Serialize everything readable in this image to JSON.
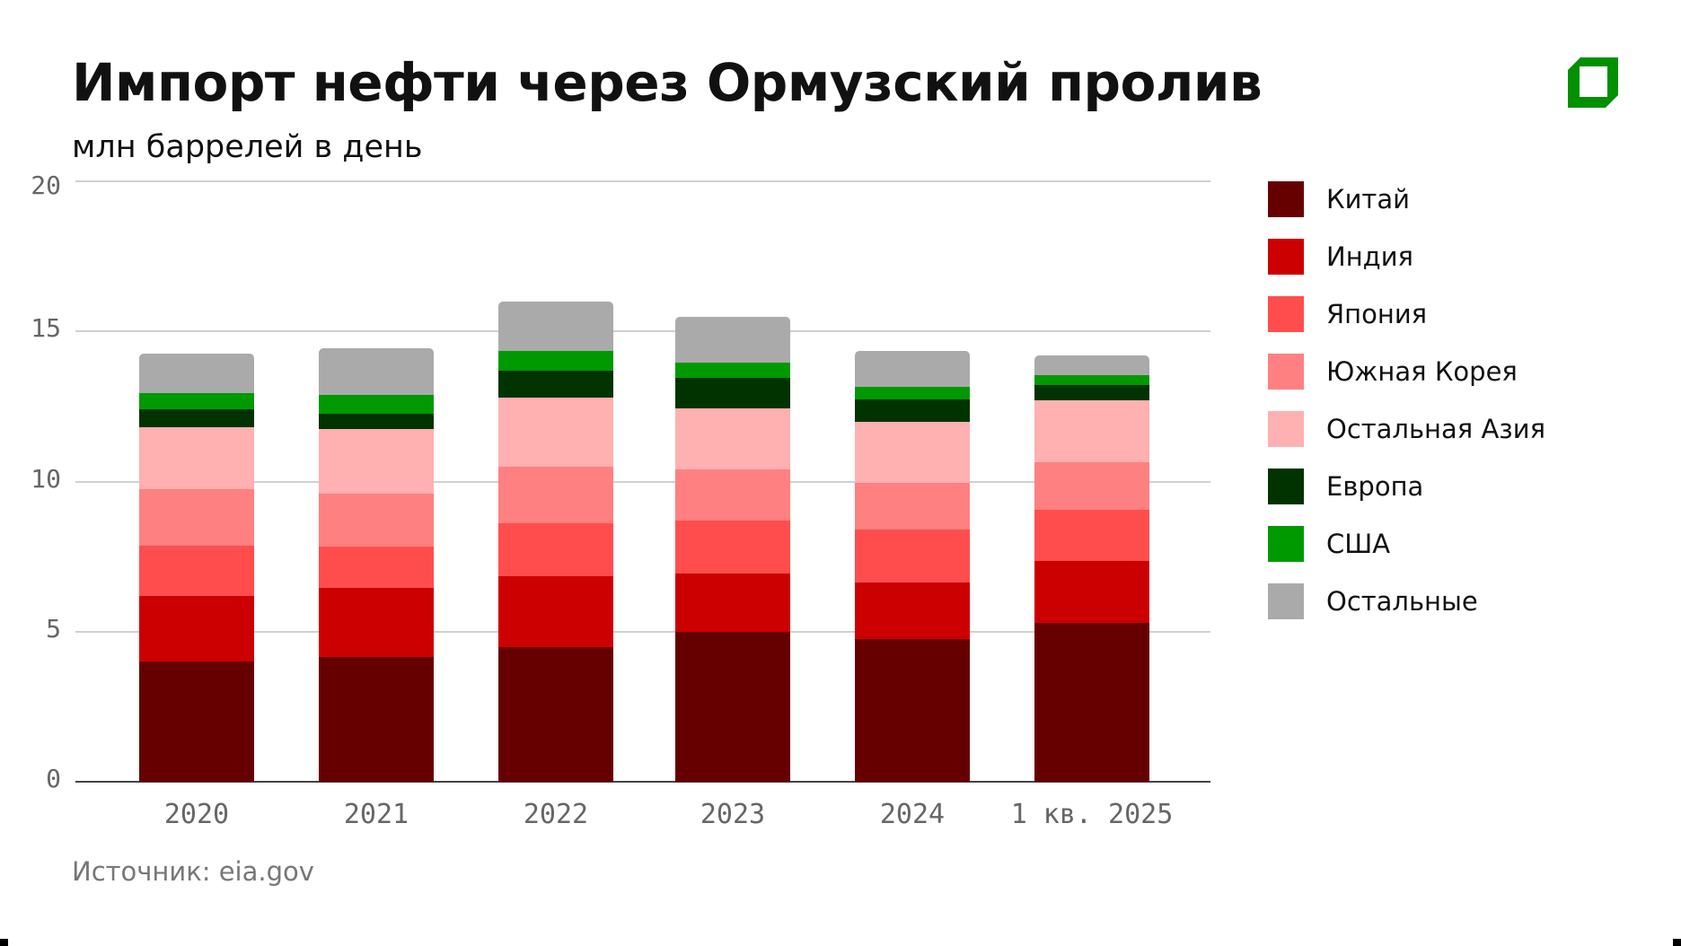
{
  "header": {
    "title": "Импорт нефти через Ормузский пролив",
    "subtitle": "млн баррелей в день"
  },
  "footer": {
    "source": "Источник: eia.gov"
  },
  "logo": {
    "icon": "brand-logo-icon",
    "color": "#009000"
  },
  "chart_data": {
    "type": "bar",
    "stacked": true,
    "title": "Импорт нефти через Ормузский пролив",
    "subtitle": "млн баррелей в день",
    "xlabel": "",
    "ylabel": "млн баррелей в день",
    "ylim": [
      0,
      20
    ],
    "yticks": [
      0,
      5,
      10,
      15,
      20
    ],
    "grid": true,
    "legend_position": "right",
    "categories": [
      "2020",
      "2021",
      "2022",
      "2023",
      "2024",
      "1 кв. 2025"
    ],
    "series": [
      {
        "name": "Китай",
        "color": "#660000",
        "values": [
          4.0,
          4.15,
          4.5,
          5.0,
          4.75,
          5.3
        ]
      },
      {
        "name": "Индия",
        "color": "#cc0000",
        "values": [
          2.2,
          2.3,
          2.35,
          1.95,
          1.9,
          2.05
        ]
      },
      {
        "name": "Япония",
        "color": "#ff4d4d",
        "values": [
          1.65,
          1.4,
          1.75,
          1.75,
          1.75,
          1.7
        ]
      },
      {
        "name": "Южная Корея",
        "color": "#ff8080",
        "values": [
          1.9,
          1.75,
          1.9,
          1.7,
          1.55,
          1.6
        ]
      },
      {
        "name": "Остальная Азия",
        "color": "#ffb0b0",
        "values": [
          2.05,
          2.15,
          2.3,
          2.05,
          2.05,
          2.05
        ]
      },
      {
        "name": "Европа",
        "color": "#003300",
        "values": [
          0.6,
          0.5,
          0.9,
          1.0,
          0.75,
          0.5
        ]
      },
      {
        "name": "США",
        "color": "#009900",
        "values": [
          0.55,
          0.65,
          0.65,
          0.5,
          0.4,
          0.35
        ]
      },
      {
        "name": "Остальные",
        "color": "#aaaaaa",
        "values": [
          1.3,
          1.55,
          1.65,
          1.55,
          1.2,
          0.65
        ]
      }
    ],
    "totals": [
      14.25,
      14.45,
      16.0,
      15.5,
      14.35,
      14.2
    ],
    "source": "Источник: eia.gov"
  }
}
